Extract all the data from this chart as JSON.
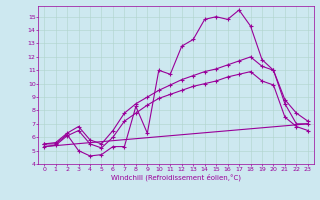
{
  "xlabel": "Windchill (Refroidissement éolien,°C)",
  "bg_color": "#cde8f0",
  "grid_color": "#b0d4cc",
  "line_color": "#990099",
  "xlim": [
    -0.5,
    23.5
  ],
  "ylim": [
    4,
    15.8
  ],
  "xticks": [
    0,
    1,
    2,
    3,
    4,
    5,
    6,
    7,
    8,
    9,
    10,
    11,
    12,
    13,
    14,
    15,
    16,
    17,
    18,
    19,
    20,
    21,
    22,
    23
  ],
  "yticks": [
    4,
    5,
    6,
    7,
    8,
    9,
    10,
    11,
    12,
    13,
    14,
    15
  ],
  "line1_x": [
    0,
    1,
    2,
    3,
    4,
    5,
    6,
    7,
    8,
    9,
    10,
    11,
    12,
    13,
    14,
    15,
    16,
    17,
    18,
    19,
    20,
    21,
    22,
    23
  ],
  "line1_y": [
    5.5,
    5.5,
    6.2,
    5.0,
    4.6,
    4.7,
    5.3,
    5.3,
    8.3,
    6.3,
    11.0,
    10.7,
    12.8,
    13.3,
    14.8,
    15.0,
    14.8,
    15.5,
    14.3,
    11.8,
    11.0,
    8.5,
    7.0,
    7.0
  ],
  "line2_x": [
    0,
    1,
    2,
    3,
    4,
    5,
    6,
    7,
    8,
    9,
    10,
    11,
    12,
    13,
    14,
    15,
    16,
    17,
    18,
    19,
    20,
    21,
    22,
    23
  ],
  "line2_y": [
    5.5,
    5.6,
    6.3,
    6.8,
    5.8,
    5.5,
    6.5,
    7.8,
    8.5,
    9.0,
    9.5,
    9.9,
    10.3,
    10.6,
    10.9,
    11.1,
    11.4,
    11.7,
    12.0,
    11.3,
    11.0,
    8.8,
    7.8,
    7.2
  ],
  "line3_x": [
    0,
    1,
    2,
    3,
    4,
    5,
    6,
    7,
    8,
    9,
    10,
    11,
    12,
    13,
    14,
    15,
    16,
    17,
    18,
    19,
    20,
    21,
    22,
    23
  ],
  "line3_y": [
    5.3,
    5.4,
    6.1,
    6.5,
    5.5,
    5.2,
    6.0,
    7.2,
    7.8,
    8.4,
    8.9,
    9.2,
    9.5,
    9.8,
    10.0,
    10.2,
    10.5,
    10.7,
    10.9,
    10.2,
    9.9,
    7.5,
    6.8,
    6.5
  ],
  "line4_x": [
    0,
    23
  ],
  "line4_y": [
    5.3,
    7.0
  ],
  "marker": "+"
}
